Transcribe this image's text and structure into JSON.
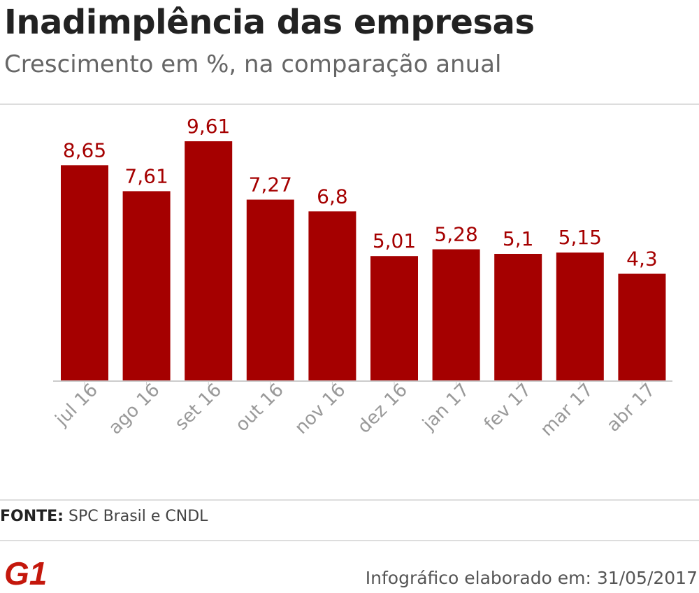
{
  "header": {
    "title": "Inadimplência das empresas",
    "subtitle": "Crescimento em %, na comparação anual"
  },
  "chart_data": {
    "type": "bar",
    "title": "Inadimplência das empresas",
    "subtitle": "Crescimento em %, na comparação anual",
    "categories": [
      "jul 16",
      "ago 16",
      "set 16",
      "out 16",
      "nov 16",
      "dez 16",
      "jan 17",
      "fev 17",
      "mar 17",
      "abr 17"
    ],
    "values": [
      8.65,
      7.61,
      9.61,
      7.27,
      6.8,
      5.01,
      5.28,
      5.1,
      5.15,
      4.3
    ],
    "value_labels": [
      "8,65",
      "7,61",
      "9,61",
      "7,27",
      "6,8",
      "5,01",
      "5,28",
      "5,1",
      "5,15",
      "4,3"
    ],
    "xlabel": "",
    "ylabel": "",
    "ylim": [
      0,
      9.61
    ],
    "grid": false,
    "bar_color": "#a50000"
  },
  "footer": {
    "source_label": "FONTE:",
    "source_text": "SPC Brasil e CNDL",
    "logo_text": "G1",
    "note": "Infográfico elaborado em: 31/05/2017"
  },
  "colors": {
    "accent": "#a50000",
    "title": "#222222",
    "subtitle": "#666666"
  }
}
